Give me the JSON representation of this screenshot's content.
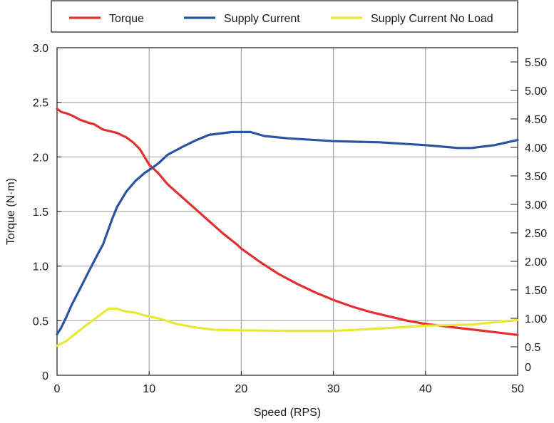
{
  "chart_data": {
    "type": "line",
    "title": "",
    "xlabel": "Speed (RPS)",
    "ylabel": "Torque (N·m)",
    "y2label": "",
    "xlim": [
      0,
      50
    ],
    "ylim": [
      0,
      3.0
    ],
    "y2lim": [
      0,
      5.75
    ],
    "grid": true,
    "legend_position": "top",
    "x_ticks": [
      0,
      10,
      20,
      30,
      40,
      50
    ],
    "x_tick_labels": [
      "0",
      "10",
      "20",
      "30",
      "40",
      "50"
    ],
    "y_ticks": [
      0,
      0.5,
      1.0,
      1.5,
      2.0,
      2.5,
      3.0
    ],
    "y_tick_labels": [
      "0",
      "0.5",
      "1.0",
      "1.5",
      "2.0",
      "2.5",
      "3.0"
    ],
    "y2_ticks": [
      0,
      0.5,
      1.0,
      1.5,
      2.0,
      2.5,
      3.0,
      3.5,
      4.0,
      4.5,
      5.0,
      5.5
    ],
    "y2_tick_labels": [
      "0",
      "0.5",
      "1.00",
      "1.50",
      "2.00",
      "2.50",
      "3.00",
      "3.50",
      "4.00",
      "4.50",
      "5.00",
      "5.50"
    ],
    "series": [
      {
        "name": "Torque",
        "axis": "left",
        "color": "#e03030",
        "x": [
          0,
          0.5,
          1,
          1.6,
          2.5,
          3.5,
          4,
          5,
          5.5,
          6.5,
          7,
          7.5,
          8.3,
          9,
          9.5,
          10,
          11,
          12,
          14,
          16,
          18,
          19.5,
          20,
          22,
          24,
          26,
          28,
          30,
          32,
          34,
          36,
          38,
          40,
          42,
          44,
          46,
          48,
          50
        ],
        "y": [
          2.44,
          2.41,
          2.4,
          2.38,
          2.34,
          2.31,
          2.3,
          2.25,
          2.24,
          2.22,
          2.2,
          2.18,
          2.13,
          2.07,
          2.0,
          1.93,
          1.85,
          1.75,
          1.6,
          1.45,
          1.3,
          1.2,
          1.16,
          1.04,
          0.93,
          0.84,
          0.76,
          0.69,
          0.63,
          0.58,
          0.54,
          0.5,
          0.47,
          0.45,
          0.43,
          0.41,
          0.39,
          0.37
        ]
      },
      {
        "name": "Supply Current",
        "axis": "right",
        "color": "#2a54a3",
        "x": [
          0,
          0.4,
          1,
          1.6,
          2.5,
          3.5,
          4.5,
          5,
          6,
          6.5,
          7.5,
          8.5,
          9.5,
          10.5,
          11,
          12,
          13.5,
          15,
          16.5,
          19,
          21,
          22.5,
          25,
          30,
          35,
          40,
          43.5,
          45,
          47.5,
          50
        ],
        "y": [
          0.72,
          0.82,
          1.02,
          1.24,
          1.52,
          1.84,
          2.15,
          2.3,
          2.75,
          2.95,
          3.22,
          3.41,
          3.55,
          3.66,
          3.72,
          3.87,
          4.0,
          4.12,
          4.22,
          4.27,
          4.27,
          4.2,
          4.16,
          4.11,
          4.09,
          4.04,
          3.99,
          3.99,
          4.04,
          4.13
        ]
      },
      {
        "name": "Supply Current No Load",
        "axis": "right",
        "color": "#e8e837",
        "x": [
          0,
          1,
          2,
          3,
          4,
          5,
          5.6,
          6.5,
          7,
          7.5,
          8.5,
          9.5,
          11,
          12,
          13,
          15,
          17,
          20,
          25,
          30,
          35,
          40,
          45,
          50
        ],
        "y": [
          0.52,
          0.6,
          0.73,
          0.86,
          0.98,
          1.1,
          1.17,
          1.17,
          1.14,
          1.12,
          1.1,
          1.05,
          1.0,
          0.95,
          0.9,
          0.84,
          0.8,
          0.79,
          0.78,
          0.78,
          0.82,
          0.87,
          0.89,
          0.97
        ]
      }
    ]
  }
}
